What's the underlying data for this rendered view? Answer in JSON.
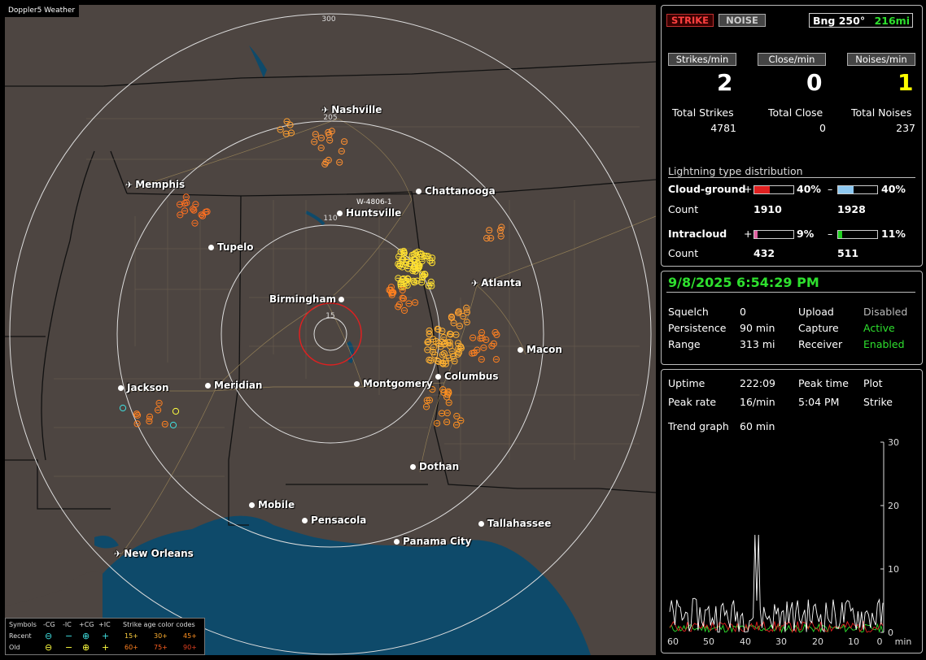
{
  "map": {
    "title": "Doppler5 Weather",
    "station_label": "W-4806-1",
    "ring_labels": [
      "300",
      "205",
      "110",
      "15"
    ],
    "cities": [
      {
        "name": "Nashville",
        "kind": "airport"
      },
      {
        "name": "Memphis",
        "kind": "airport"
      },
      {
        "name": "Chattanooga",
        "kind": "dot"
      },
      {
        "name": "Huntsville",
        "kind": "dot"
      },
      {
        "name": "Tupelo",
        "kind": "dot"
      },
      {
        "name": "Atlanta",
        "kind": "airport"
      },
      {
        "name": "Birmingham",
        "kind": "dot"
      },
      {
        "name": "Macon",
        "kind": "dot"
      },
      {
        "name": "Jackson",
        "kind": "dot"
      },
      {
        "name": "Meridian",
        "kind": "dot"
      },
      {
        "name": "Montgomery",
        "kind": "dot"
      },
      {
        "name": "Columbus",
        "kind": "dot"
      },
      {
        "name": "Dothan",
        "kind": "dot"
      },
      {
        "name": "Mobile",
        "kind": "dot"
      },
      {
        "name": "Pensacola",
        "kind": "dot"
      },
      {
        "name": "Tallahassee",
        "kind": "dot"
      },
      {
        "name": "Panama City",
        "kind": "dot"
      },
      {
        "name": "New Orleans",
        "kind": "airport"
      }
    ],
    "legend": {
      "symbols_label": "Symbols",
      "cols": [
        "-CG",
        "-IC",
        "+CG",
        "+IC"
      ],
      "recent_label": "Recent",
      "old_label": "Old",
      "age_title": "Strike age color codes",
      "recent_ages": [
        "15+",
        "30+",
        "45+"
      ],
      "old_ages": [
        "60+",
        "75+",
        "90+"
      ]
    }
  },
  "top": {
    "strike_btn": "STRIKE",
    "noise_btn": "NOISE",
    "bearing": "Bng 250°",
    "distance": "216mi",
    "headers": [
      "Strikes/min",
      "Close/min",
      "Noises/min"
    ],
    "rates": [
      "2",
      "0",
      "1"
    ],
    "total_labels": [
      "Total Strikes",
      "Total Close",
      "Total Noises"
    ],
    "totals": [
      "4781",
      "0",
      "237"
    ],
    "dist_title": "Lightning type distribution",
    "cg_label": "Cloud-ground",
    "ic_label": "Intracloud",
    "count_label": "Count",
    "plus": "+",
    "minus": "–",
    "cg_pos_pct": "40%",
    "cg_neg_pct": "40%",
    "cg_pos_count": "1910",
    "cg_neg_count": "1928",
    "ic_pos_pct": "9%",
    "ic_neg_pct": "11%",
    "ic_pos_count": "432",
    "ic_neg_count": "511",
    "cg_pos_frac": 0.4,
    "cg_neg_frac": 0.4,
    "ic_pos_frac": 0.09,
    "ic_neg_frac": 0.11
  },
  "status": {
    "datetime": "9/8/2025 6:54:29 PM",
    "rows": [
      {
        "k1": "Squelch",
        "v1": "0",
        "k2": "Upload",
        "v2": "Disabled"
      },
      {
        "k1": "Persistence",
        "v1": "90 min",
        "k2": "Capture",
        "v2": "Active"
      },
      {
        "k1": "Range",
        "v1": "313 mi",
        "k2": "Receiver",
        "v2": "Enabled"
      }
    ]
  },
  "trend": {
    "uptime_label": "Uptime",
    "uptime": "222:09",
    "peak_time_label": "Peak time",
    "plot_label": "Plot",
    "peak_rate_label": "Peak rate",
    "peak_rate": "16/min",
    "peak_time": "5:04 PM",
    "plot_value": "Strike",
    "trend_label": "Trend graph",
    "trend_value": "60 min",
    "y_ticks": [
      "30",
      "20",
      "10",
      "0"
    ],
    "x_ticks": [
      "60",
      "50",
      "40",
      "30",
      "20",
      "10",
      "0"
    ],
    "x_unit": "min"
  },
  "colors": {
    "map_land": "#4d4541",
    "water": "#0e4a6a",
    "green": "#2ee02e",
    "yellow": "#ffff00",
    "cg_pos_bar": "#e02020",
    "cg_neg_bar": "#8ec8f0",
    "ic_pos_bar": "#e060a0",
    "ic_neg_bar": "#20d020"
  }
}
